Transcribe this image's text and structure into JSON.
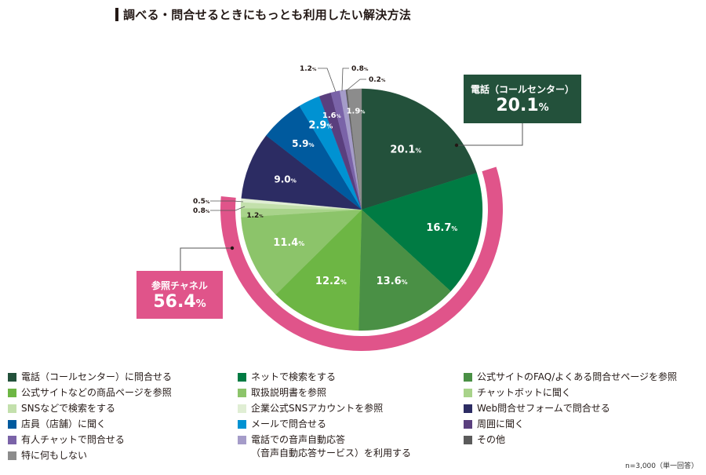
{
  "title": "調べる・問合せるときにもっとも利用したい解決方法",
  "callouts": {
    "phone": {
      "label": "電話（コールセンター）",
      "value": "20.1",
      "unit": "%"
    },
    "reference": {
      "label": "参照チャネル",
      "value": "56.4",
      "unit": "%"
    }
  },
  "note": "n=3,000（単一回答）",
  "chart_data": {
    "type": "pie",
    "title": "調べる・問合せるときにもっとも利用したい解決方法",
    "unit": "%",
    "start": "top",
    "direction": "clockwise",
    "slices": [
      {
        "label": "電話（コールセンター）に問合せる",
        "value": 20.1,
        "color": "#23513b",
        "text_color": "#ffffff"
      },
      {
        "label": "ネットで検索をする",
        "value": 16.7,
        "color": "#007b43",
        "text_color": "#ffffff"
      },
      {
        "label": "公式サイトのFAQ/よくある問合せページを参照",
        "value": 13.6,
        "color": "#4a9045",
        "text_color": "#ffffff"
      },
      {
        "label": "公式サイトなどの商品ページを参照",
        "value": 12.2,
        "color": "#6db644",
        "text_color": "#ffffff"
      },
      {
        "label": "取扱説明書を参照",
        "value": 11.4,
        "color": "#8cc46a",
        "text_color": "#ffffff"
      },
      {
        "label": "チャットボットに聞く",
        "value": 1.2,
        "color": "#a8d38a",
        "text_color": "#231815"
      },
      {
        "label": "SNSなどで検索をする",
        "value": 0.8,
        "color": "#c3e0ac",
        "text_color": "#231815"
      },
      {
        "label": "企業公式SNSアカウントを参照",
        "value": 0.5,
        "color": "#e0eed4",
        "text_color": "#231815"
      },
      {
        "label": "Web問合せフォームで問合せる",
        "value": 9.0,
        "color": "#2c2c63",
        "text_color": "#ffffff"
      },
      {
        "label": "店員（店舗）に聞く",
        "value": 5.9,
        "color": "#005a9e",
        "text_color": "#ffffff"
      },
      {
        "label": "メールで問合せる",
        "value": 2.9,
        "color": "#0092d2",
        "text_color": "#ffffff"
      },
      {
        "label": "周囲に聞く",
        "value": 1.6,
        "color": "#5a3f7e",
        "text_color": "#ffffff"
      },
      {
        "label": "有人チャットで問合せる",
        "value": 1.2,
        "color": "#7a63a8",
        "text_color": "#231815"
      },
      {
        "label": "電話での音声自動応答\n（音声自動応答サービス）を利用する",
        "value": 0.8,
        "color": "#a59cc9",
        "text_color": "#231815"
      },
      {
        "label": "その他",
        "value": 0.2,
        "color": "#5b5b5b",
        "text_color": "#231815"
      },
      {
        "label": "特に何もしない",
        "value": 1.9,
        "color": "#8c8c8c",
        "text_color": "#ffffff"
      }
    ],
    "group_ring": {
      "label": "参照チャネル",
      "value": 56.4,
      "from_slice": 1,
      "to_slice": 7,
      "color": "#e0548a"
    },
    "highlight_color": "#23513b",
    "legend": {
      "placement": "bottom",
      "columns": [
        [
          0,
          3,
          6,
          9,
          12,
          15
        ],
        [
          1,
          4,
          7,
          10,
          13
        ],
        [
          2,
          5,
          8,
          11,
          14
        ]
      ]
    }
  }
}
